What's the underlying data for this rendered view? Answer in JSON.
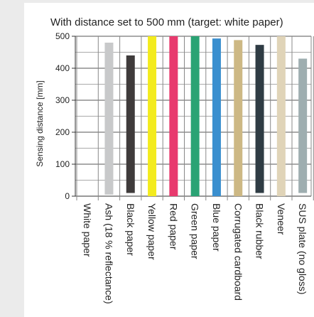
{
  "chart_data": {
    "type": "bar",
    "title": "With distance set to 500 mm (target: white paper)",
    "ylabel": "Sensing distance [mm]",
    "xlabel": "",
    "ylim": [
      0,
      500
    ],
    "yticks": [
      0,
      100,
      200,
      300,
      400,
      500
    ],
    "grid": "horizontal",
    "categories": [
      "White paper",
      "Ash (18 % reflectance)",
      "Black paper",
      "Yellow paper",
      "Red paper",
      "Green paper",
      "Blue paper",
      "Corrugated cardboard",
      "Black rubber",
      "Veneer",
      "SUS plate (no gloss)"
    ],
    "bars": [
      {
        "low": 0,
        "high": 0,
        "color": "#ffffff"
      },
      {
        "low": 5,
        "high": 480,
        "color": "#c8c9ca"
      },
      {
        "low": 10,
        "high": 440,
        "color": "#3f3b3b"
      },
      {
        "low": 0,
        "high": 500,
        "color": "#f3eb1e"
      },
      {
        "low": 0,
        "high": 500,
        "color": "#e83a6e"
      },
      {
        "low": 0,
        "high": 500,
        "color": "#2aa374"
      },
      {
        "low": 0,
        "high": 493,
        "color": "#3a8fcf"
      },
      {
        "low": 0,
        "high": 488,
        "color": "#cdb884"
      },
      {
        "low": 10,
        "high": 473,
        "color": "#2f3c44"
      },
      {
        "low": 0,
        "high": 500,
        "color": "#e0d4b8"
      },
      {
        "low": 10,
        "high": 430,
        "color": "#9eaeb0"
      }
    ]
  }
}
